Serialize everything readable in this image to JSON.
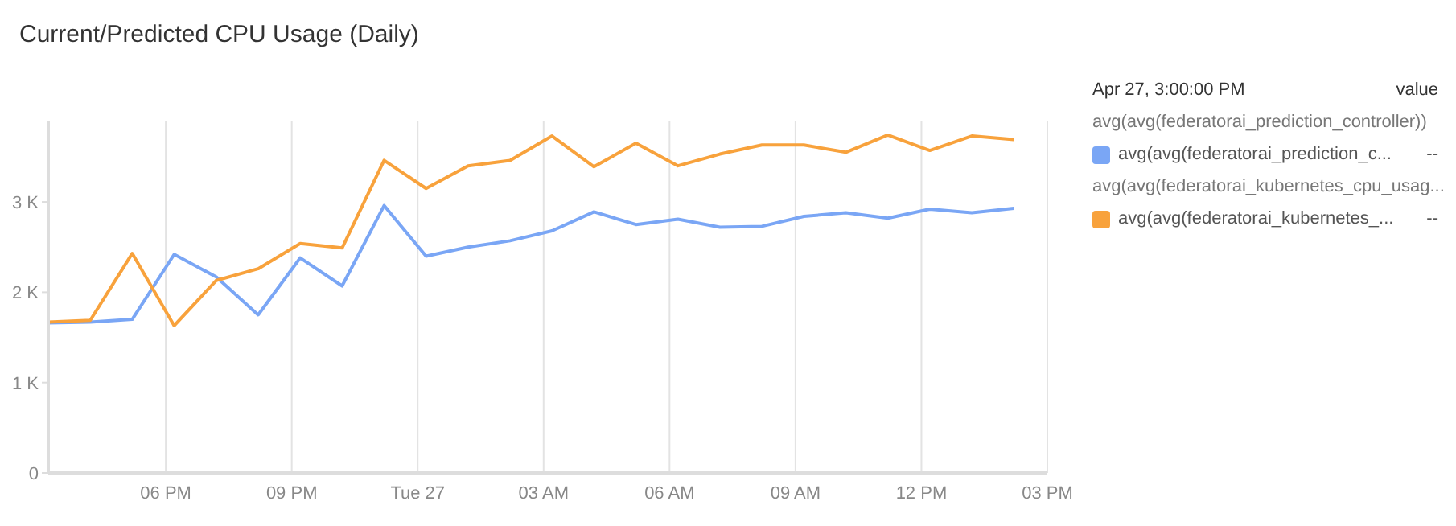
{
  "chart_data": {
    "type": "line",
    "title": "Current/Predicted CPU Usage (Daily)",
    "x": [
      "--04-26T15:12",
      "--04-26T16:12",
      "--04-26T17:12",
      "--04-26T18:12",
      "--04-26T19:12",
      "--04-26T20:12",
      "--04-26T21:12",
      "--04-26T22:12",
      "--04-26T23:12",
      "--04-27T00:12",
      "--04-27T01:12",
      "--04-27T02:12",
      "--04-27T03:12",
      "--04-27T04:12",
      "--04-27T05:12",
      "--04-27T06:12",
      "--04-27T07:12",
      "--04-27T08:12",
      "--04-27T09:12",
      "--04-27T10:12",
      "--04-27T11:12",
      "--04-27T12:12",
      "--04-27T13:12",
      "--04-27T14:12"
    ],
    "series": [
      {
        "name": "avg(avg(federatorai_prediction_c...",
        "color": "#7aa6f5",
        "values": [
          1660,
          1670,
          1700,
          2420,
          2170,
          1750,
          2380,
          2070,
          2960,
          2400,
          2500,
          2570,
          2680,
          2890,
          2750,
          2810,
          2720,
          2730,
          2840,
          2880,
          2820,
          2920,
          2880,
          2930
        ]
      },
      {
        "name": "avg(avg(federatorai_kubernetes_...",
        "color": "#f8a23c",
        "values": [
          1670,
          1690,
          2430,
          1630,
          2130,
          2260,
          2540,
          2490,
          3460,
          3150,
          3400,
          3460,
          3730,
          3390,
          3650,
          3400,
          3530,
          3630,
          3630,
          3550,
          3740,
          3570,
          3730,
          3690
        ]
      }
    ],
    "xlim": [
      "--04-26T15:12",
      "--04-27T15:00"
    ],
    "xticks": [
      {
        "value": "--04-26T18:00",
        "label": "06 PM"
      },
      {
        "value": "--04-26T21:00",
        "label": "09 PM"
      },
      {
        "value": "--04-27T00:00",
        "label": "Tue 27"
      },
      {
        "value": "--04-27T03:00",
        "label": "03 AM"
      },
      {
        "value": "--04-27T06:00",
        "label": "06 AM"
      },
      {
        "value": "--04-27T09:00",
        "label": "09 AM"
      },
      {
        "value": "--04-27T12:00",
        "label": "12 PM"
      },
      {
        "value": "--04-27T15:00",
        "label": "03 PM"
      }
    ],
    "ylim": [
      0,
      3900
    ],
    "yticks": [
      0,
      {
        "value": 1000,
        "label": "1 K"
      },
      {
        "value": 2000,
        "label": "2 K"
      },
      {
        "value": 3000,
        "label": "3 K"
      }
    ],
    "grid": "x",
    "legend": "right",
    "marker": "none",
    "annotations": [
      "Apr 27, 3:00:00 PM",
      "value",
      "avg(avg(federatorai_prediction_controller))",
      "--",
      "avg(avg(federatorai_kubernetes_cpu_usag...",
      "--"
    ]
  }
}
